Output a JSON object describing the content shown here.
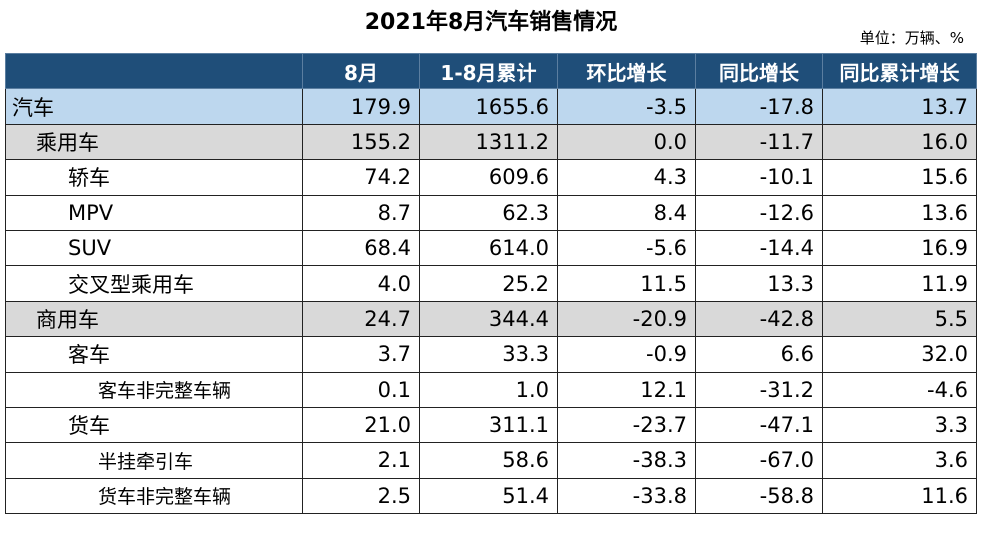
{
  "title": "2021年8月汽车销售情况",
  "unit": "单位：万辆、%",
  "chart_data": {
    "type": "table",
    "title": "2021年8月汽车销售情况",
    "columns": [
      "",
      "8月",
      "1-8月累计",
      "环比增长",
      "同比增长",
      "同比累计增长"
    ],
    "rows": [
      {
        "name": "汽车",
        "level": 0,
        "values": [
          "179.9",
          "1655.6",
          "-3.5",
          "-17.8",
          "13.7"
        ]
      },
      {
        "name": "乘用车",
        "level": 1,
        "values": [
          "155.2",
          "1311.2",
          "0.0",
          "-11.7",
          "16.0"
        ]
      },
      {
        "name": "轿车",
        "level": 2,
        "values": [
          "74.2",
          "609.6",
          "4.3",
          "-10.1",
          "15.6"
        ]
      },
      {
        "name": "MPV",
        "level": 2,
        "values": [
          "8.7",
          "62.3",
          "8.4",
          "-12.6",
          "13.6"
        ]
      },
      {
        "name": "SUV",
        "level": 2,
        "values": [
          "68.4",
          "614.0",
          "-5.6",
          "-14.4",
          "16.9"
        ]
      },
      {
        "name": "交叉型乘用车",
        "level": 2,
        "values": [
          "4.0",
          "25.2",
          "11.5",
          "13.3",
          "11.9"
        ]
      },
      {
        "name": "商用车",
        "level": 1,
        "values": [
          "24.7",
          "344.4",
          "-20.9",
          "-42.8",
          "5.5"
        ]
      },
      {
        "name": "客车",
        "level": 2,
        "values": [
          "3.7",
          "33.3",
          "-0.9",
          "6.6",
          "32.0"
        ]
      },
      {
        "name": "客车非完整车辆",
        "level": 3,
        "values": [
          "0.1",
          "1.0",
          "12.1",
          "-31.2",
          "-4.6"
        ]
      },
      {
        "name": "货车",
        "level": 2,
        "values": [
          "21.0",
          "311.1",
          "-23.7",
          "-47.1",
          "3.3"
        ]
      },
      {
        "name": "半挂牵引车",
        "level": 3,
        "values": [
          "2.1",
          "58.6",
          "-38.3",
          "-67.0",
          "3.6"
        ]
      },
      {
        "name": "货车非完整车辆",
        "level": 3,
        "values": [
          "2.5",
          "51.4",
          "-33.8",
          "-58.8",
          "11.6"
        ]
      }
    ]
  },
  "colors": {
    "header_bg": "#1f4e79",
    "total_row_bg": "#bdd7ee",
    "subtotal_row_bg": "#d9d9d9"
  }
}
